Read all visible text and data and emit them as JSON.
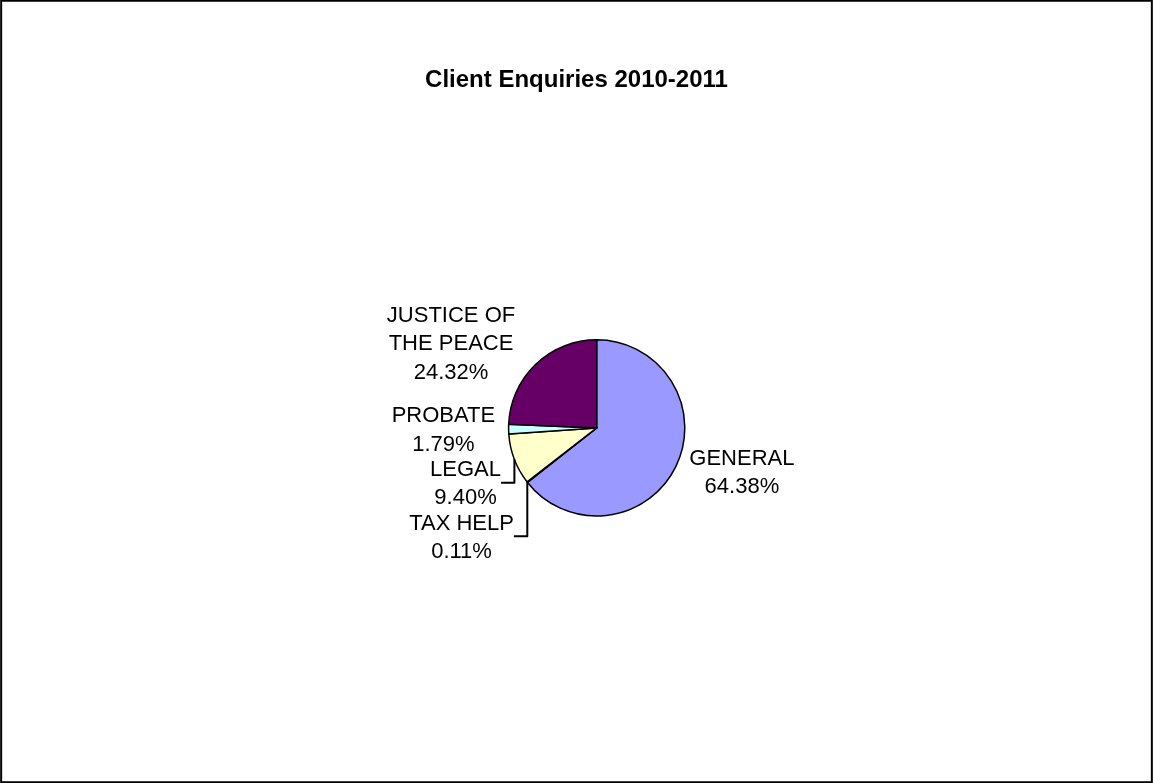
{
  "chart_data": {
    "type": "pie",
    "title": "Client Enquiries 2010-2011",
    "categories": [
      "GENERAL",
      "TAX HELP",
      "LEGAL",
      "PROBATE",
      "JUSTICE OF THE PEACE"
    ],
    "values": [
      64.38,
      0.11,
      9.4,
      1.79,
      24.32
    ],
    "value_labels": [
      "64.38%",
      "0.11%",
      "9.40%",
      "1.79%",
      "24.32%"
    ],
    "colors": [
      "#9999ff",
      "#993366",
      "#ffffcc",
      "#ccffff",
      "#660066"
    ],
    "legend": false
  }
}
